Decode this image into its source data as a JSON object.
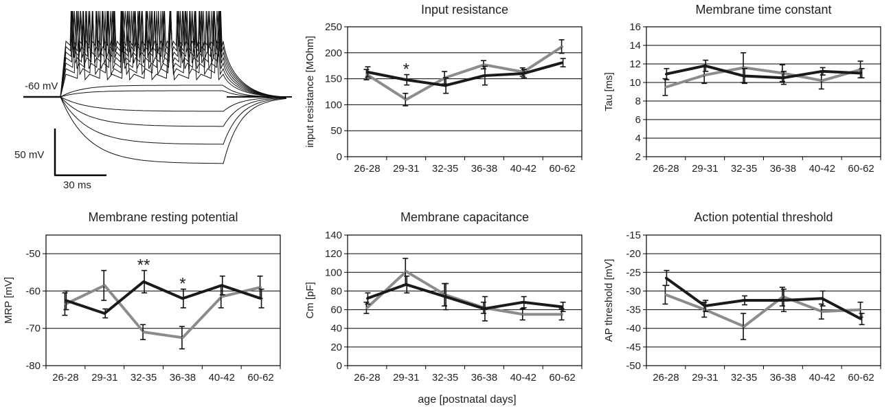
{
  "figure": {
    "xaxis_label": "age [postnatal days]",
    "trace_panel": {
      "voltage_label": "-60 mV",
      "scale_voltage": "50 mV",
      "scale_time": "30 ms"
    }
  },
  "series_colors": {
    "gray": "#8c8c8c",
    "black": "#1a1a1a"
  },
  "chart_data": [
    {
      "id": "input-resistance",
      "type": "line",
      "title": "Input resistance",
      "ylabel": "input resistance [MOhm]",
      "ylim": [
        0,
        250
      ],
      "yticks": [
        0,
        50,
        100,
        150,
        200,
        250
      ],
      "categories": [
        "26-28",
        "29-31",
        "32-35",
        "36-38",
        "40-42",
        "60-62"
      ],
      "series": [
        {
          "name": "gray",
          "values": [
            158,
            110,
            152,
            177,
            163,
            212
          ],
          "errors": [
            10,
            12,
            12,
            8,
            8,
            13
          ]
        },
        {
          "name": "black",
          "values": [
            163,
            148,
            137,
            156,
            160,
            181
          ],
          "errors": [
            10,
            10,
            15,
            18,
            8,
            8
          ]
        }
      ],
      "annotations": [
        {
          "category": "29-31",
          "text": "*"
        }
      ]
    },
    {
      "id": "membrane-time-constant",
      "type": "line",
      "title": "Membrane time constant",
      "ylabel": "Tau [ms]",
      "ylim": [
        2,
        16
      ],
      "yticks": [
        2,
        4,
        6,
        8,
        10,
        12,
        14,
        16
      ],
      "categories": [
        "26-28",
        "29-31",
        "32-35",
        "36-38",
        "40-42",
        "60-62"
      ],
      "series": [
        {
          "name": "gray",
          "values": [
            9.5,
            10.8,
            11.6,
            11.0,
            10.2,
            11.4
          ],
          "errors": [
            0.9,
            0.9,
            1.6,
            0.9,
            0.9,
            0.9
          ]
        },
        {
          "name": "black",
          "values": [
            10.9,
            11.8,
            10.7,
            10.5,
            11.2,
            11.0
          ],
          "errors": [
            0.6,
            0.6,
            0.8,
            0.7,
            0.4,
            0.5
          ]
        }
      ],
      "annotations": []
    },
    {
      "id": "membrane-resting-potential",
      "type": "line",
      "title": "Membrane resting potential",
      "ylabel": "MRP [mV]",
      "ylim": [
        -80,
        -45
      ],
      "yticks": [
        -80,
        -70,
        -60,
        -50
      ],
      "categories": [
        "26-28",
        "29-31",
        "32-35",
        "36-38",
        "40-42",
        "60-62"
      ],
      "series": [
        {
          "name": "gray",
          "values": [
            -63.5,
            -58.5,
            -71,
            -72.5,
            -61.5,
            -59
          ],
          "errors": [
            3,
            4,
            2,
            3,
            3,
            3
          ]
        },
        {
          "name": "black",
          "values": [
            -62.5,
            -66,
            -57.5,
            -62,
            -58.5,
            -62
          ],
          "errors": [
            2.5,
            1.2,
            3,
            2.5,
            2.5,
            2.5
          ]
        }
      ],
      "annotations": [
        {
          "category": "32-35",
          "text": "**"
        },
        {
          "category": "36-38",
          "text": "*"
        }
      ]
    },
    {
      "id": "membrane-capacitance",
      "type": "line",
      "title": "Membrane capacitance",
      "ylabel": "Cm [pF]",
      "ylim": [
        0,
        140
      ],
      "yticks": [
        0,
        20,
        40,
        60,
        80,
        100,
        120,
        140
      ],
      "categories": [
        "26-28",
        "29-31",
        "32-35",
        "36-38",
        "40-42",
        "60-62"
      ],
      "series": [
        {
          "name": "gray",
          "values": [
            62,
            101,
            76,
            62,
            55,
            55
          ],
          "errors": [
            6,
            14,
            12,
            6,
            6,
            6
          ]
        },
        {
          "name": "black",
          "values": [
            72,
            87,
            74,
            61,
            68,
            63
          ],
          "errors": [
            6,
            9,
            14,
            13,
            6,
            5
          ]
        }
      ],
      "annotations": []
    },
    {
      "id": "action-potential-threshold",
      "type": "line",
      "title": "Action potential threshold",
      "ylabel": "AP threshold [mV]",
      "ylim": [
        -50,
        -15
      ],
      "yticks": [
        -50,
        -45,
        -40,
        -35,
        -30,
        -25,
        -20,
        -15
      ],
      "categories": [
        "26-28",
        "29-31",
        "32-35",
        "36-38",
        "40-42",
        "60-62"
      ],
      "series": [
        {
          "name": "gray",
          "values": [
            -31,
            -35,
            -39.5,
            -31.5,
            -35.5,
            -35
          ],
          "errors": [
            2.5,
            2,
            3.5,
            2.5,
            2,
            2
          ]
        },
        {
          "name": "black",
          "values": [
            -26.5,
            -34,
            -32.5,
            -32.5,
            -32,
            -37.5
          ],
          "errors": [
            2,
            1.5,
            1.2,
            3,
            2,
            1.5
          ]
        }
      ],
      "annotations": []
    }
  ]
}
